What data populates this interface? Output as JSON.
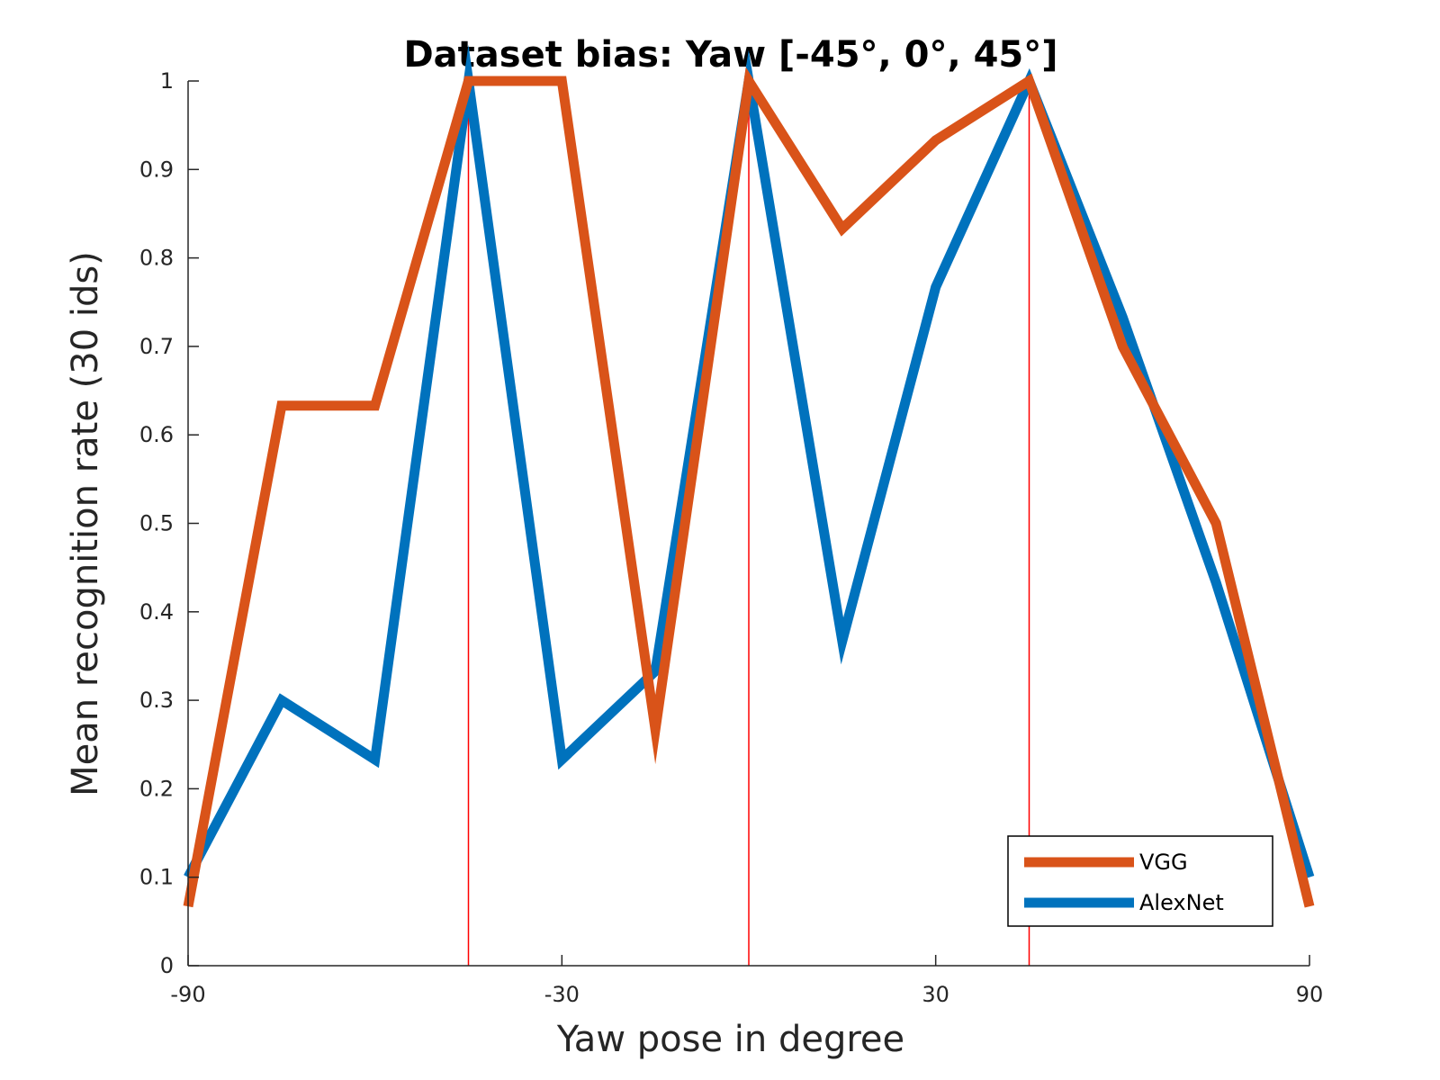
{
  "chart_data": {
    "type": "line",
    "title": "Dataset bias: Yaw [-45°, 0°, 45°]",
    "xlabel": "Yaw pose in degree",
    "ylabel": "Mean recognition rate (30 ids)",
    "xlim": [
      -90,
      90
    ],
    "ylim": [
      0,
      1
    ],
    "xticks": [
      -90,
      -30,
      30,
      90
    ],
    "xtick_labels": [
      "-90",
      "-30",
      "30",
      "90"
    ],
    "yticks": [
      0,
      0.1,
      0.2,
      0.3,
      0.4,
      0.5,
      0.6,
      0.7,
      0.8,
      0.9,
      1
    ],
    "ytick_labels": [
      "0",
      "0.1",
      "0.2",
      "0.3",
      "0.4",
      "0.5",
      "0.6",
      "0.7",
      "0.8",
      "0.9",
      "1"
    ],
    "x": [
      -90,
      -75,
      -60,
      -45,
      -30,
      -15,
      0,
      15,
      30,
      45,
      60,
      75,
      90
    ],
    "series": [
      {
        "name": "VGG",
        "color": "#D95319",
        "values": [
          0.067,
          0.633,
          0.633,
          1.0,
          1.0,
          0.267,
          1.0,
          0.833,
          0.933,
          1.0,
          0.7,
          0.5,
          0.067
        ]
      },
      {
        "name": "AlexNet",
        "color": "#0072BD",
        "values": [
          0.1,
          0.3,
          0.233,
          1.0,
          0.233,
          0.333,
          1.0,
          0.367,
          0.767,
          1.0,
          0.733,
          0.433,
          0.1
        ]
      }
    ],
    "reference_lines": {
      "x": [
        -45,
        0,
        45
      ],
      "color": "#FF0000"
    },
    "grid": false,
    "legend_position": "bottom-right"
  }
}
